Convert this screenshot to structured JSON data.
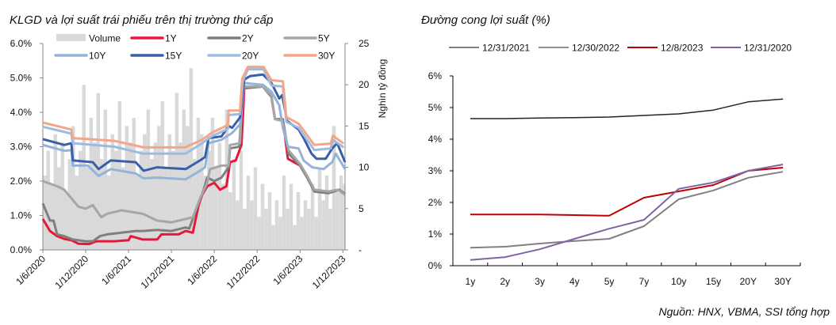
{
  "chart_data": [
    {
      "type": "line",
      "title": "KLGD và lợi suất trái phiếu trên thị trường thứ cấp",
      "x_unit": "months since 1/6/2020",
      "xticks": [
        0,
        6,
        12,
        18,
        24,
        30,
        36,
        42
      ],
      "xtick_labels": [
        "1/6/2020",
        "1/12/2020",
        "1/6/2021",
        "1/12/2021",
        "1/6/2022",
        "1/12/2022",
        "1/6/2023",
        "1/12/2023"
      ],
      "xlim": [
        0,
        42.3
      ],
      "ylim": [
        0,
        6
      ],
      "yticks": [
        0,
        1,
        2,
        3,
        4,
        5,
        6
      ],
      "ytick_labels": [
        "0.0%",
        "1.0%",
        "2.0%",
        "3.0%",
        "4.0%",
        "5.0%",
        "6.0%"
      ],
      "y2lim": [
        0,
        25
      ],
      "y2ticks": [
        0,
        5,
        10,
        15,
        20,
        25
      ],
      "y2tick_labels": [
        "-",
        "5",
        "10",
        "15",
        "20",
        "25"
      ],
      "y2label": "Nghìn tỷ đồng",
      "legend_position": "top",
      "volume": {
        "name": "Volume",
        "color": "#d9d9d9",
        "step_months": 0.5,
        "values": [
          9,
          12,
          8,
          14,
          10,
          13,
          7,
          11,
          15,
          9,
          12,
          20,
          10,
          16,
          13,
          19,
          11,
          17,
          9,
          14,
          12,
          18,
          10,
          15,
          13,
          16,
          9,
          12,
          14,
          17,
          11,
          13,
          15,
          18,
          10,
          14,
          12,
          19,
          13,
          17,
          15,
          22,
          11,
          16,
          14,
          9,
          12,
          16,
          10,
          13,
          8,
          17,
          7,
          11,
          6,
          12,
          5,
          9,
          6,
          10,
          4,
          8,
          5,
          7,
          3,
          6,
          4,
          9,
          5,
          8,
          3,
          7,
          4,
          6,
          5,
          8,
          4,
          10,
          6,
          9,
          5,
          15,
          7,
          9,
          8,
          10,
          7
        ]
      },
      "series": [
        {
          "name": "1Y",
          "color": "#e8173a",
          "points": [
            [
              0,
              0.9
            ],
            [
              1,
              0.55
            ],
            [
              2,
              0.4
            ],
            [
              3,
              0.32
            ],
            [
              4,
              0.28
            ],
            [
              5,
              0.18
            ],
            [
              6.5,
              0.17
            ],
            [
              7.5,
              0.25
            ],
            [
              10,
              0.25
            ],
            [
              12,
              0.28
            ],
            [
              12.3,
              0.4
            ],
            [
              14,
              0.3
            ],
            [
              16,
              0.3
            ],
            [
              16.6,
              0.45
            ],
            [
              19,
              0.45
            ],
            [
              20,
              0.55
            ],
            [
              21,
              0.5
            ],
            [
              21.8,
              1.3
            ],
            [
              22.3,
              1.6
            ],
            [
              23,
              1.85
            ],
            [
              24,
              1.95
            ],
            [
              24.8,
              1.75
            ],
            [
              25.7,
              1.85
            ],
            [
              26.2,
              2.55
            ],
            [
              27,
              2.6
            ],
            [
              27.8,
              3.05
            ],
            [
              28.2,
              4.7
            ],
            [
              30.8,
              4.75
            ],
            [
              32,
              4.45
            ],
            [
              32.5,
              3.8
            ],
            [
              33.6,
              3.8
            ],
            [
              34.3,
              2.65
            ],
            [
              36,
              2.45
            ],
            [
              37,
              2.1
            ],
            [
              38,
              1.7
            ],
            [
              40,
              1.65
            ],
            [
              41.5,
              1.75
            ],
            [
              42.3,
              1.62
            ]
          ]
        },
        {
          "name": "2Y",
          "color": "#7f7f7f",
          "points": [
            [
              0,
              1.35
            ],
            [
              1,
              0.85
            ],
            [
              1.5,
              0.85
            ],
            [
              2,
              0.45
            ],
            [
              3,
              0.4
            ],
            [
              4.2,
              0.3
            ],
            [
              6,
              0.25
            ],
            [
              7,
              0.25
            ],
            [
              8,
              0.4
            ],
            [
              9,
              0.45
            ],
            [
              11,
              0.5
            ],
            [
              13,
              0.55
            ],
            [
              14,
              0.55
            ],
            [
              16,
              0.58
            ],
            [
              18,
              0.55
            ],
            [
              20,
              0.65
            ],
            [
              20.5,
              0.62
            ],
            [
              21.5,
              1.2
            ],
            [
              22.5,
              1.75
            ],
            [
              23,
              2.1
            ],
            [
              24,
              2.0
            ],
            [
              25,
              2.1
            ],
            [
              26,
              2.4
            ],
            [
              26.2,
              2.95
            ],
            [
              27.5,
              3.0
            ],
            [
              28,
              4.7
            ],
            [
              30.8,
              4.75
            ],
            [
              32,
              4.45
            ],
            [
              32.5,
              3.8
            ],
            [
              33.6,
              3.8
            ],
            [
              34.4,
              2.8
            ],
            [
              36,
              2.45
            ],
            [
              37,
              2.1
            ],
            [
              38,
              1.7
            ],
            [
              40,
              1.65
            ],
            [
              41.5,
              1.75
            ],
            [
              42.3,
              1.6
            ]
          ]
        },
        {
          "name": "5Y",
          "color": "#a6a6a6",
          "points": [
            [
              0,
              2.0
            ],
            [
              2,
              1.85
            ],
            [
              3,
              1.75
            ],
            [
              4,
              1.5
            ],
            [
              5,
              1.25
            ],
            [
              6,
              1.2
            ],
            [
              7,
              1.3
            ],
            [
              8,
              1.0
            ],
            [
              8.2,
              0.95
            ],
            [
              9,
              1.05
            ],
            [
              11,
              1.15
            ],
            [
              14,
              1.05
            ],
            [
              16,
              0.85
            ],
            [
              18,
              0.8
            ],
            [
              20,
              0.9
            ],
            [
              21,
              0.95
            ],
            [
              22,
              1.5
            ],
            [
              23,
              1.95
            ],
            [
              23.4,
              2.35
            ],
            [
              25,
              2.45
            ],
            [
              26,
              2.45
            ],
            [
              26.2,
              3.05
            ],
            [
              27.6,
              3.1
            ],
            [
              28,
              4.75
            ],
            [
              30.8,
              4.75
            ],
            [
              32,
              4.5
            ],
            [
              32.5,
              3.8
            ],
            [
              33.5,
              3.75
            ],
            [
              34.4,
              2.9
            ],
            [
              36,
              2.5
            ],
            [
              37,
              2.15
            ],
            [
              38,
              1.75
            ],
            [
              40,
              1.7
            ],
            [
              41.3,
              1.75
            ],
            [
              42.3,
              1.6
            ]
          ]
        },
        {
          "name": "10Y",
          "color": "#95b3d7",
          "points": [
            [
              0,
              3.05
            ],
            [
              3,
              2.88
            ],
            [
              4,
              2.9
            ],
            [
              4.2,
              2.45
            ],
            [
              6.3,
              2.45
            ],
            [
              7.8,
              2.15
            ],
            [
              9.5,
              2.35
            ],
            [
              13,
              2.22
            ],
            [
              14.1,
              2.08
            ],
            [
              16,
              2.1
            ],
            [
              20,
              2.05
            ],
            [
              22,
              2.3
            ],
            [
              22.7,
              2.4
            ],
            [
              23.2,
              3.1
            ],
            [
              25,
              3.2
            ],
            [
              26.5,
              3.4
            ],
            [
              27.6,
              3.65
            ],
            [
              28.2,
              4.85
            ],
            [
              30.8,
              4.8
            ],
            [
              32,
              4.6
            ],
            [
              33.1,
              4.2
            ],
            [
              33.6,
              3.55
            ],
            [
              34.3,
              3.0
            ],
            [
              35.8,
              2.95
            ],
            [
              36.5,
              2.6
            ],
            [
              37.7,
              2.4
            ],
            [
              39.3,
              2.35
            ],
            [
              40.5,
              2.55
            ],
            [
              41,
              2.8
            ],
            [
              42.3,
              2.35
            ]
          ]
        },
        {
          "name": "15Y",
          "color": "#3a5ea8",
          "points": [
            [
              0,
              3.22
            ],
            [
              3,
              3.05
            ],
            [
              4,
              3.1
            ],
            [
              4.2,
              2.6
            ],
            [
              7,
              2.55
            ],
            [
              7.8,
              2.35
            ],
            [
              9.5,
              2.6
            ],
            [
              13,
              2.55
            ],
            [
              14.1,
              2.3
            ],
            [
              16,
              2.4
            ],
            [
              20,
              2.35
            ],
            [
              22,
              2.6
            ],
            [
              22.7,
              2.7
            ],
            [
              23.2,
              3.25
            ],
            [
              25,
              3.3
            ],
            [
              26,
              3.6
            ],
            [
              26.5,
              3.55
            ],
            [
              27.6,
              3.85
            ],
            [
              28.2,
              4.95
            ],
            [
              29,
              5.05
            ],
            [
              30.8,
              5.1
            ],
            [
              32,
              4.85
            ],
            [
              33.1,
              4.4
            ],
            [
              33.5,
              4.5
            ],
            [
              34.2,
              3.75
            ],
            [
              35.8,
              3.5
            ],
            [
              36.5,
              3.25
            ],
            [
              37.6,
              2.8
            ],
            [
              38.3,
              2.65
            ],
            [
              39.6,
              2.65
            ],
            [
              40.5,
              2.95
            ],
            [
              41.2,
              3.1
            ],
            [
              42.3,
              2.55
            ]
          ]
        },
        {
          "name": "20Y",
          "color": "#9dbbe0",
          "points": [
            [
              0,
              3.58
            ],
            [
              4,
              3.38
            ],
            [
              4.2,
              3.1
            ],
            [
              10,
              3.0
            ],
            [
              14,
              2.8
            ],
            [
              20,
              2.8
            ],
            [
              22.3,
              3.1
            ],
            [
              23.6,
              3.3
            ],
            [
              25.9,
              3.52
            ],
            [
              26,
              3.92
            ],
            [
              27.6,
              3.95
            ],
            [
              28,
              4.9
            ],
            [
              28.7,
              5.25
            ],
            [
              30.9,
              5.25
            ],
            [
              32,
              4.78
            ],
            [
              33.6,
              4.75
            ],
            [
              34.1,
              3.72
            ],
            [
              35.8,
              3.55
            ],
            [
              38,
              2.9
            ],
            [
              40.3,
              2.95
            ],
            [
              40.6,
              3.2
            ],
            [
              42.1,
              2.98
            ]
          ]
        },
        {
          "name": "30Y",
          "color": "#f4a688",
          "points": [
            [
              0,
              3.7
            ],
            [
              4,
              3.5
            ],
            [
              4.2,
              3.25
            ],
            [
              10,
              3.17
            ],
            [
              14.1,
              2.98
            ],
            [
              19.9,
              2.98
            ],
            [
              22.3,
              3.2
            ],
            [
              23.6,
              3.4
            ],
            [
              25.9,
              3.63
            ],
            [
              26,
              4.05
            ],
            [
              27.6,
              4.05
            ],
            [
              27.9,
              4.97
            ],
            [
              28.7,
              5.32
            ],
            [
              30.9,
              5.32
            ],
            [
              32,
              4.93
            ],
            [
              33.6,
              4.9
            ],
            [
              34.1,
              3.86
            ],
            [
              35.8,
              3.67
            ],
            [
              38,
              3.05
            ],
            [
              40.3,
              3.09
            ],
            [
              40.6,
              3.32
            ],
            [
              42.1,
              3.09
            ]
          ]
        }
      ]
    },
    {
      "type": "line",
      "title": "Đường cong lợi suất (%)",
      "categories": [
        "1y",
        "2y",
        "3y",
        "4y",
        "5y",
        "7y",
        "10y",
        "15y",
        "20Y",
        "30Y"
      ],
      "ylim": [
        0,
        6
      ],
      "yticks": [
        0,
        1,
        2,
        3,
        4,
        5,
        6
      ],
      "ytick_labels": [
        "0%",
        "1%",
        "2%",
        "3%",
        "4%",
        "5%",
        "6%"
      ],
      "legend_position": "top",
      "series": [
        {
          "name": "12/31/2021",
          "color": "#808080",
          "values": [
            0.57,
            0.6,
            0.7,
            0.78,
            0.85,
            1.25,
            2.1,
            2.38,
            2.78,
            2.97
          ]
        },
        {
          "name": "12/30/2022",
          "color": "#222222",
          "values": [
            4.65,
            4.65,
            4.67,
            4.68,
            4.7,
            4.75,
            4.8,
            4.92,
            5.18,
            5.27
          ]
        },
        {
          "name": "12/8/2023",
          "color": "#c00000",
          "values": [
            1.62,
            1.62,
            1.62,
            1.6,
            1.58,
            2.15,
            2.35,
            2.55,
            3.0,
            3.1
          ]
        },
        {
          "name": "12/31/2020",
          "color": "#8064a2",
          "values": [
            0.18,
            0.27,
            0.52,
            0.85,
            1.17,
            1.45,
            2.43,
            2.63,
            3.0,
            3.2
          ]
        }
      ]
    }
  ],
  "source": "Nguồn: HNX, VBMA, SSI tổng hợp"
}
